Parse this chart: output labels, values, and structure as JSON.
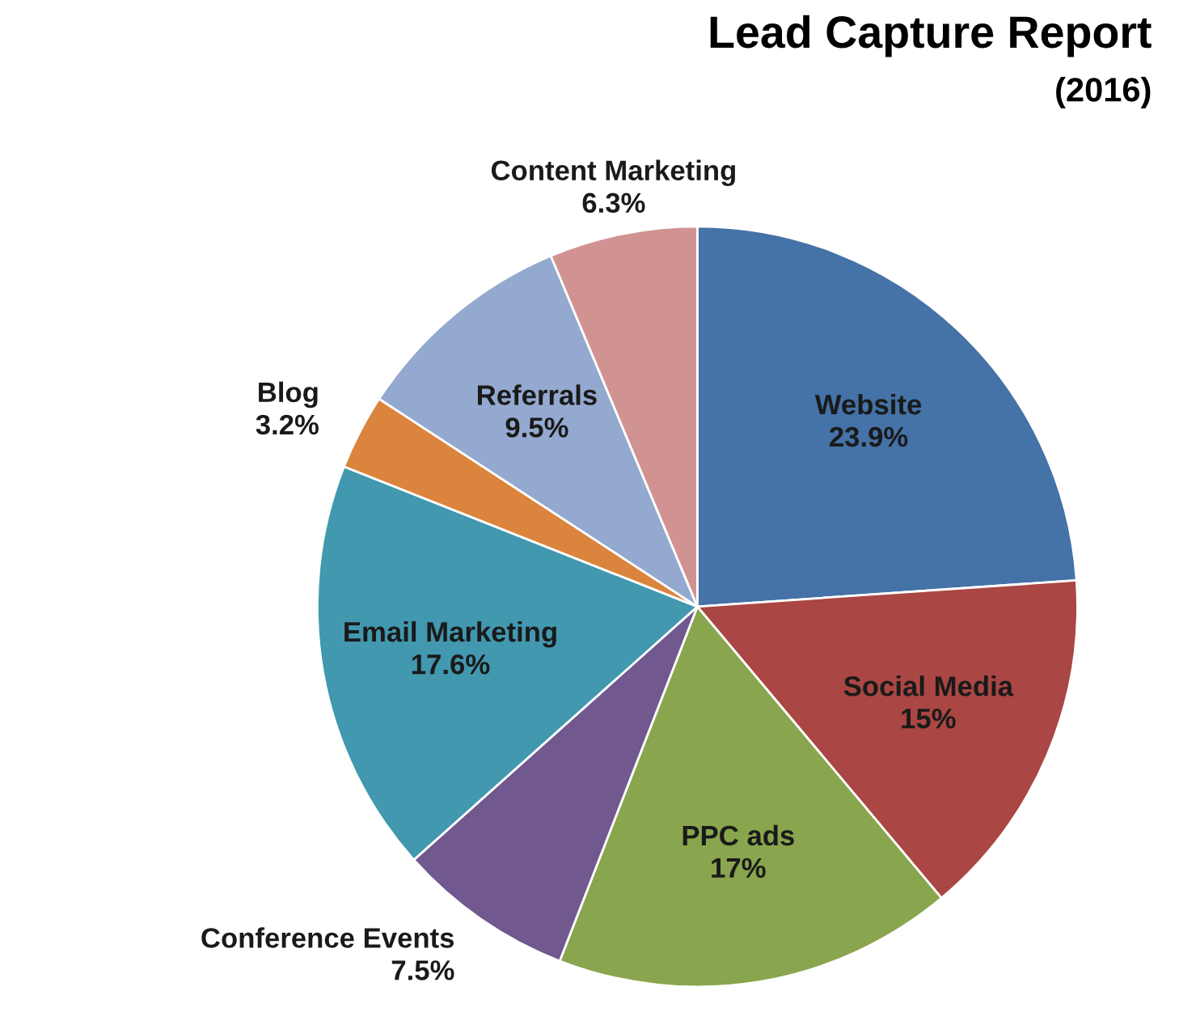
{
  "chart_data": {
    "type": "pie",
    "title": "Lead Capture Report",
    "subtitle": "(2016)",
    "categories": [
      "Website",
      "Social Media",
      "PPC ads",
      "Conference Events",
      "Email Marketing",
      "Blog",
      "Referrals",
      "Content Marketing"
    ],
    "values": [
      23.9,
      15,
      17,
      7.5,
      17.6,
      3.2,
      9.5,
      6.3
    ],
    "colors": [
      "#4572a7",
      "#aa4643",
      "#89a54e",
      "#71588f",
      "#4198af",
      "#db843d",
      "#93a9cf",
      "#d19392"
    ],
    "value_labels": [
      "23.9%",
      "15%",
      "17%",
      "7.5%",
      "17.6%",
      "3.2%",
      "9.5%",
      "6.3%"
    ],
    "legend": false
  }
}
